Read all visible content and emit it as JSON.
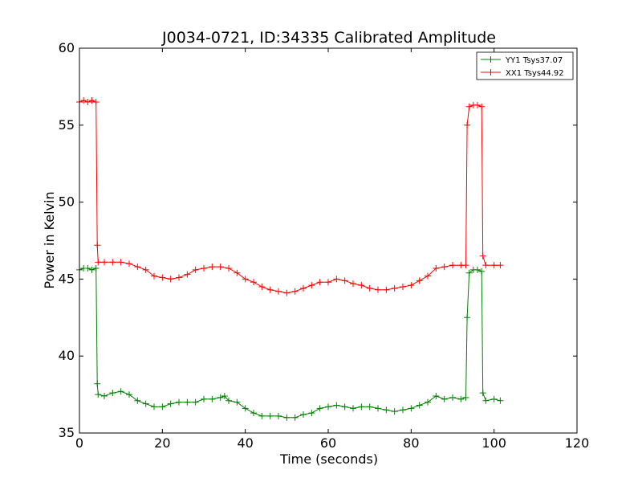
{
  "chart_data": {
    "type": "line",
    "title": "J0034-0721, ID:34335 Calibrated Amplitude",
    "xlabel": "Time (seconds)",
    "ylabel": "Power in Kelvin",
    "xlim": [
      0,
      120
    ],
    "ylim": [
      35,
      60
    ],
    "xticks": [
      0,
      20,
      40,
      60,
      80,
      100,
      120
    ],
    "yticks": [
      35,
      40,
      45,
      50,
      55,
      60
    ],
    "grid": false,
    "legend_position": "top-right",
    "series": [
      {
        "name": "YY1 Tsys37.07",
        "color": "#008000",
        "marker": "+",
        "points": [
          [
            0,
            45.6
          ],
          [
            1,
            45.7
          ],
          [
            2,
            45.7
          ],
          [
            3,
            45.6
          ],
          [
            4,
            45.7
          ],
          [
            4.3,
            38.2
          ],
          [
            4.5,
            37.5
          ],
          [
            6,
            37.4
          ],
          [
            8,
            37.6
          ],
          [
            10,
            37.7
          ],
          [
            12,
            37.5
          ],
          [
            14,
            37.1
          ],
          [
            16,
            36.9
          ],
          [
            18,
            36.7
          ],
          [
            20,
            36.7
          ],
          [
            22,
            36.9
          ],
          [
            24,
            37.0
          ],
          [
            26,
            37.0
          ],
          [
            28,
            37.0
          ],
          [
            30,
            37.2
          ],
          [
            32,
            37.2
          ],
          [
            34,
            37.3
          ],
          [
            35,
            37.4
          ],
          [
            36,
            37.1
          ],
          [
            38,
            37.0
          ],
          [
            40,
            36.6
          ],
          [
            42,
            36.3
          ],
          [
            44,
            36.1
          ],
          [
            46,
            36.1
          ],
          [
            48,
            36.1
          ],
          [
            50,
            36.0
          ],
          [
            52,
            36.0
          ],
          [
            54,
            36.2
          ],
          [
            56,
            36.3
          ],
          [
            58,
            36.6
          ],
          [
            60,
            36.7
          ],
          [
            62,
            36.8
          ],
          [
            64,
            36.7
          ],
          [
            66,
            36.6
          ],
          [
            68,
            36.7
          ],
          [
            70,
            36.7
          ],
          [
            72,
            36.6
          ],
          [
            74,
            36.5
          ],
          [
            76,
            36.4
          ],
          [
            78,
            36.5
          ],
          [
            80,
            36.6
          ],
          [
            82,
            36.8
          ],
          [
            84,
            37.0
          ],
          [
            86,
            37.4
          ],
          [
            88,
            37.2
          ],
          [
            90,
            37.3
          ],
          [
            92,
            37.2
          ],
          [
            93.2,
            37.3
          ],
          [
            93.5,
            42.5
          ],
          [
            94,
            45.4
          ],
          [
            95,
            45.6
          ],
          [
            96,
            45.6
          ],
          [
            97,
            45.5
          ],
          [
            97.3,
            37.6
          ],
          [
            98,
            37.1
          ],
          [
            100,
            37.2
          ],
          [
            101.5,
            37.1
          ]
        ]
      },
      {
        "name": "XX1 Tsys44.92",
        "color": "#ff0000",
        "marker": "+",
        "points": [
          [
            0,
            56.5
          ],
          [
            1,
            56.6
          ],
          [
            2,
            56.5
          ],
          [
            3,
            56.6
          ],
          [
            4,
            56.5
          ],
          [
            4.3,
            47.2
          ],
          [
            4.5,
            46.1
          ],
          [
            6,
            46.1
          ],
          [
            8,
            46.1
          ],
          [
            10,
            46.1
          ],
          [
            12,
            46.0
          ],
          [
            14,
            45.8
          ],
          [
            16,
            45.6
          ],
          [
            18,
            45.2
          ],
          [
            20,
            45.1
          ],
          [
            22,
            45.0
          ],
          [
            24,
            45.1
          ],
          [
            26,
            45.3
          ],
          [
            28,
            45.6
          ],
          [
            30,
            45.7
          ],
          [
            32,
            45.8
          ],
          [
            34,
            45.8
          ],
          [
            36,
            45.7
          ],
          [
            38,
            45.4
          ],
          [
            40,
            45.0
          ],
          [
            42,
            44.8
          ],
          [
            44,
            44.5
          ],
          [
            46,
            44.3
          ],
          [
            48,
            44.2
          ],
          [
            50,
            44.1
          ],
          [
            52,
            44.2
          ],
          [
            54,
            44.4
          ],
          [
            56,
            44.6
          ],
          [
            58,
            44.8
          ],
          [
            60,
            44.8
          ],
          [
            62,
            45.0
          ],
          [
            64,
            44.9
          ],
          [
            66,
            44.7
          ],
          [
            68,
            44.6
          ],
          [
            70,
            44.4
          ],
          [
            72,
            44.3
          ],
          [
            74,
            44.3
          ],
          [
            76,
            44.4
          ],
          [
            78,
            44.5
          ],
          [
            80,
            44.6
          ],
          [
            82,
            44.9
          ],
          [
            84,
            45.2
          ],
          [
            86,
            45.7
          ],
          [
            88,
            45.8
          ],
          [
            90,
            45.9
          ],
          [
            92,
            45.9
          ],
          [
            93.2,
            45.9
          ],
          [
            93.5,
            55.0
          ],
          [
            94,
            56.2
          ],
          [
            95,
            56.3
          ],
          [
            96,
            56.3
          ],
          [
            97,
            56.2
          ],
          [
            97.3,
            46.5
          ],
          [
            98,
            45.9
          ],
          [
            100,
            45.9
          ],
          [
            101.5,
            45.9
          ]
        ]
      }
    ]
  }
}
